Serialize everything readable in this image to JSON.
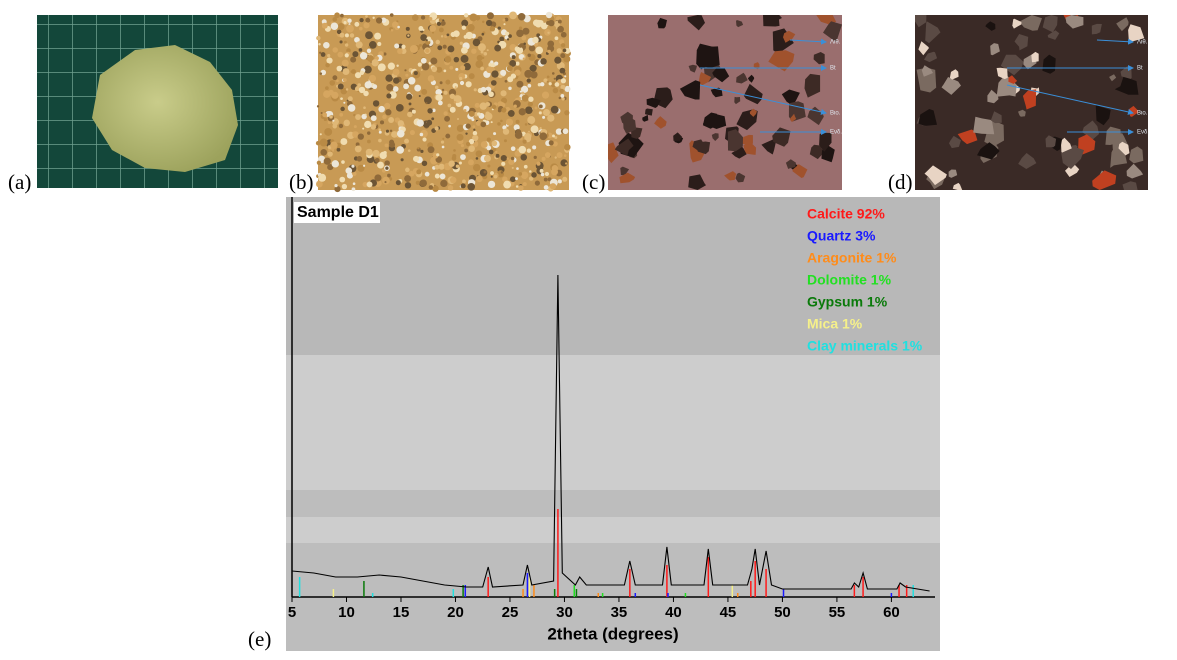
{
  "panels": [
    {
      "label": "(a)"
    },
    {
      "label": "(b)"
    },
    {
      "label": "(c)",
      "annotations": [
        "Λιθ.",
        "Bt",
        "Βιο.",
        "Ενδ."
      ]
    },
    {
      "label": "(d)",
      "annotations": [
        "Λιθ.",
        "Bt",
        "Βιο.",
        "Ενδ."
      ]
    },
    {
      "label": "(e)"
    }
  ],
  "chart_data": {
    "type": "line",
    "title": "Sample D1",
    "x_label": "2theta (degrees)",
    "xlim": [
      5,
      64
    ],
    "xticks": [
      5,
      10,
      15,
      20,
      25,
      30,
      35,
      40,
      45,
      50,
      55,
      60
    ],
    "ylim": [
      0,
      100
    ],
    "x": [
      5,
      7,
      9,
      11,
      13,
      15,
      17,
      19,
      21,
      22.5,
      23,
      23.4,
      26.2,
      26.6,
      27,
      29,
      29.4,
      29.8,
      31,
      31.4,
      32,
      35.5,
      36,
      36.5,
      39,
      39.4,
      39.8,
      42.8,
      43.2,
      43.6,
      46.8,
      47.2,
      47.5,
      47.9,
      48.5,
      49,
      50,
      56.3,
      56.6,
      57,
      57.4,
      57.8,
      60.5,
      60.8,
      61.3,
      63.5
    ],
    "series": [
      {
        "color": "#000000",
        "values": [
          6.5,
          6,
          5,
          5,
          5.5,
          5,
          4,
          3,
          2.5,
          2.5,
          7.5,
          2.5,
          3,
          8,
          3,
          4,
          80.5,
          6,
          3,
          5,
          3,
          3,
          9,
          3,
          3,
          12.5,
          3,
          3,
          12,
          3,
          3,
          7,
          12,
          3,
          11.5,
          3,
          2,
          2,
          3.5,
          2.5,
          6,
          2,
          2,
          3.5,
          2.5,
          1.5
        ]
      }
    ],
    "phases": [
      {
        "name": "Calcite 92%",
        "color": "#ff1a1a",
        "peaks": [
          23.0,
          29.4,
          36.0,
          39.4,
          43.2,
          47.1,
          47.5,
          48.5,
          56.6,
          57.4,
          60.7,
          61.4
        ],
        "heights": [
          5,
          22,
          7,
          8,
          10,
          4,
          9,
          7,
          3,
          5,
          3,
          3
        ]
      },
      {
        "name": "Quartz 3%",
        "color": "#1a1aff",
        "peaks": [
          20.9,
          26.6,
          36.5,
          39.5,
          50.1,
          60.0
        ],
        "heights": [
          3,
          6,
          1,
          1,
          2,
          1
        ]
      },
      {
        "name": "Aragonite 1%",
        "color": "#ff8c1a",
        "peaks": [
          26.2,
          27.2,
          33.1,
          45.9
        ],
        "heights": [
          2,
          3,
          1,
          1
        ]
      },
      {
        "name": "Dolomite 1%",
        "color": "#22e022",
        "peaks": [
          30.9,
          33.5,
          41.1
        ],
        "heights": [
          3,
          1,
          1
        ]
      },
      {
        "name": "Gypsum 1%",
        "color": "#0a7a0a",
        "peaks": [
          11.6,
          20.7,
          29.1,
          31.1
        ],
        "heights": [
          4,
          3,
          2,
          2
        ]
      },
      {
        "name": "Mica 1%",
        "color": "#f5f08a",
        "peaks": [
          8.8,
          19.8,
          26.8,
          45.4
        ],
        "heights": [
          2,
          1,
          5,
          3
        ]
      },
      {
        "name": "Clay minerals 1%",
        "color": "#20e0e0",
        "peaks": [
          5.7,
          12.4,
          19.8,
          62.0
        ],
        "heights": [
          5,
          1,
          2,
          3
        ]
      }
    ]
  }
}
